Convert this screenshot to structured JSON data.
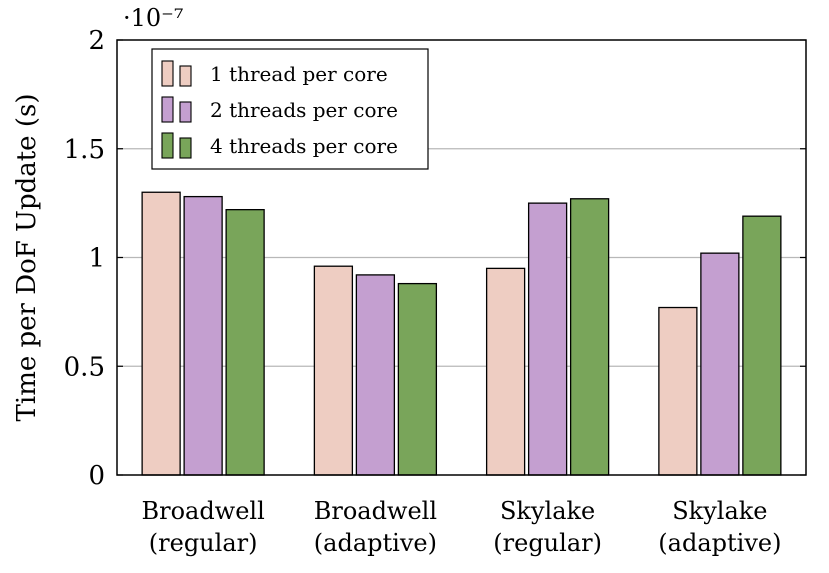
{
  "chart_data": {
    "type": "bar",
    "categories": [
      [
        "Broadwell",
        "(regular)"
      ],
      [
        "Broadwell",
        "(adaptive)"
      ],
      [
        "Skylake",
        "(regular)"
      ],
      [
        "Skylake",
        "(adaptive)"
      ]
    ],
    "series": [
      {
        "name": "1 thread per core",
        "color": "#eecdc2",
        "values": [
          1.3,
          0.96,
          0.95,
          0.77
        ]
      },
      {
        "name": "2 threads per core",
        "color": "#c49fd0",
        "values": [
          1.28,
          0.92,
          1.25,
          1.02
        ]
      },
      {
        "name": "4 threads per core",
        "color": "#79a55a",
        "values": [
          1.22,
          0.88,
          1.27,
          1.19
        ]
      }
    ],
    "ylabel": "Time per DoF Update (s)",
    "y_multiplier": "·10⁻⁷",
    "ylim": [
      0,
      2
    ],
    "yticks": [
      0,
      0.5,
      1,
      1.5,
      2
    ],
    "ytick_labels": [
      "0",
      "0.5",
      "1",
      "1.5",
      "2"
    ],
    "grid": "horizontal",
    "legend_position": "top-left"
  }
}
